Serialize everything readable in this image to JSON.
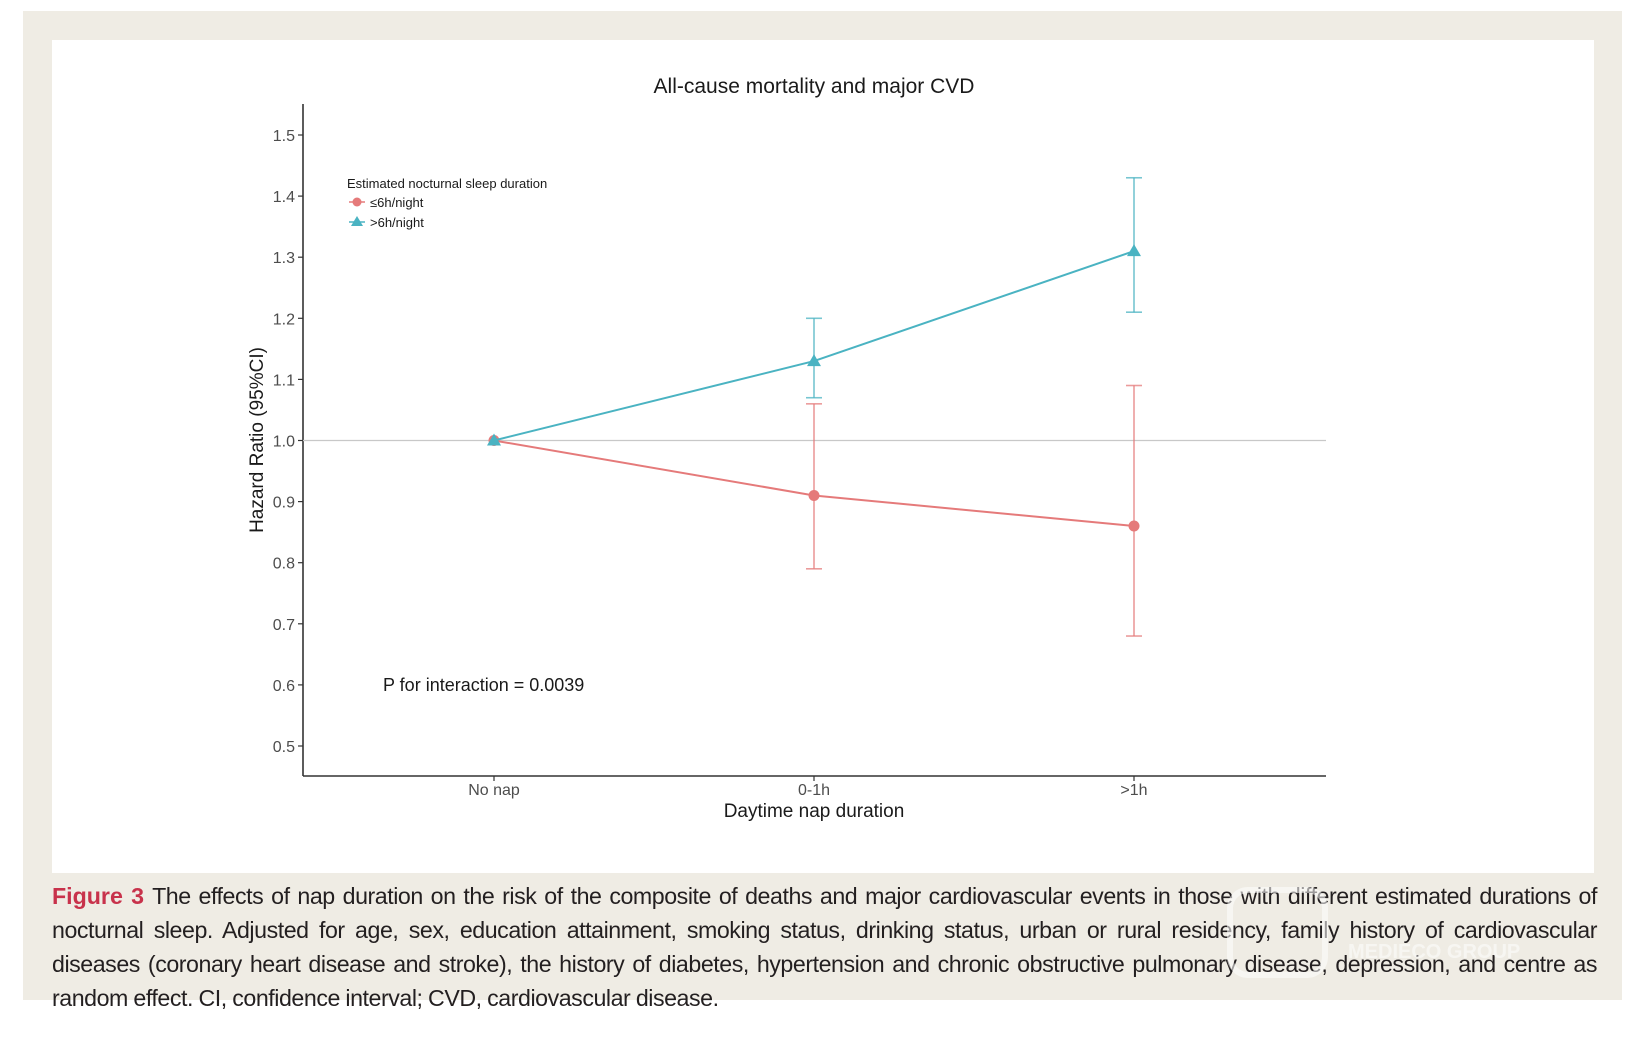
{
  "colors": {
    "frame_bg": "#efece4",
    "series_short": "#e57a7a",
    "series_long": "#4ab3c2",
    "reference_line": "#c8c8c8",
    "caption_label": "#c8324b"
  },
  "chart_data": {
    "type": "line",
    "title": "All-cause mortality and major CVD",
    "xlabel": "Daytime nap duration",
    "ylabel": "Hazard Ratio (95%CI)",
    "categories": [
      "No nap",
      "0-1h",
      ">1h"
    ],
    "ylim": [
      0.45,
      1.55
    ],
    "yticks": [
      0.5,
      0.6,
      0.7,
      0.8,
      0.9,
      1.0,
      1.1,
      1.2,
      1.3,
      1.4,
      1.5
    ],
    "ytick_labels": [
      "0.5",
      "0.6",
      "0.7",
      "0.8",
      "0.9",
      "1.0",
      "1.1",
      "1.2",
      "1.3",
      "1.4",
      "1.5"
    ],
    "reference_line": 1.0,
    "grid": false,
    "legend": {
      "title": "Estimated nocturnal sleep duration",
      "placement": "top-left",
      "entries": [
        "≤6h/night",
        ">6h/night"
      ]
    },
    "annotation": "P for interaction = 0.0039",
    "series": [
      {
        "name": "≤6h/night",
        "marker": "circle",
        "color": "#e57a7a",
        "values": [
          1.0,
          0.91,
          0.86
        ],
        "ci_lower": [
          null,
          0.79,
          0.68
        ],
        "ci_upper": [
          null,
          1.06,
          1.09
        ]
      },
      {
        "name": ">6h/night",
        "marker": "triangle",
        "color": "#4ab3c2",
        "values": [
          1.0,
          1.13,
          1.31
        ],
        "ci_lower": [
          null,
          1.07,
          1.21
        ],
        "ci_upper": [
          null,
          1.2,
          1.43
        ]
      }
    ]
  },
  "caption": {
    "label": "Figure 3",
    "text": "The effects of nap duration on the risk of the composite of deaths and major cardiovascular events in those with different estimated durations of nocturnal sleep. Adjusted for age, sex, education attainment, smoking status, drinking status, urban or rural residency, family history of cardiovascular diseases (coronary heart disease and stroke), the history of diabetes, hypertension and chronic obstructive pulmonary disease, depression, and centre as random effect. CI, confidence interval; CVD, cardiovascular disease."
  },
  "watermark": {
    "text": "MEDIECO GROUP"
  }
}
